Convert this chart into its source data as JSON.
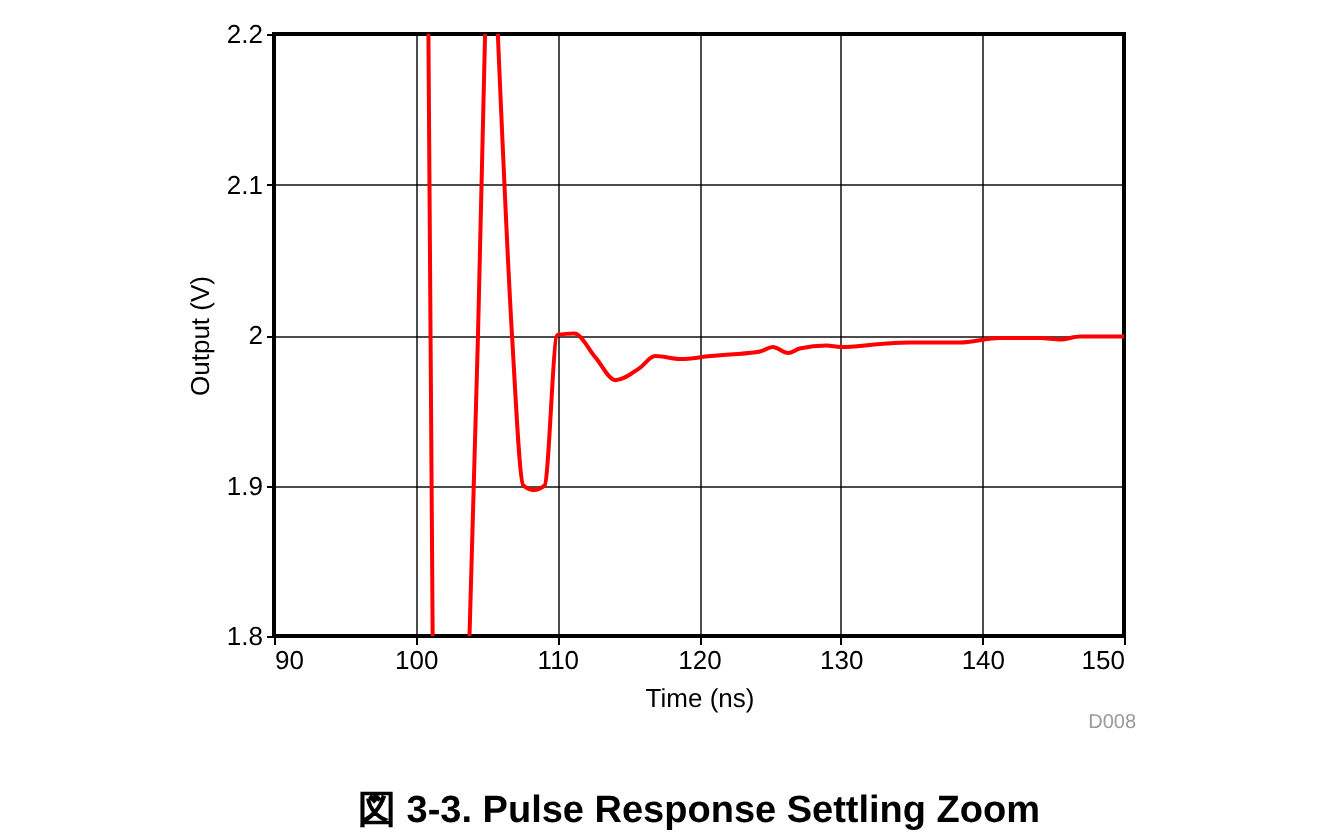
{
  "chart_data": {
    "type": "line",
    "title": "図 3-3. Pulse Response Settling Zoom",
    "xlabel": "Time (ns)",
    "ylabel": "Output (V)",
    "annotations": [
      "D008"
    ],
    "x": [
      100.9,
      101.2,
      102.5,
      103.8,
      104.4,
      104.9,
      105.3,
      105.8,
      106.8,
      107.6,
      108.35,
      109.1,
      110.0,
      111.2,
      112.7,
      114.1,
      115.8,
      116.9,
      118.7,
      120.8,
      122.2,
      124.3,
      125.2,
      126.3,
      127.1,
      129.0,
      130.0,
      132.8,
      134.9,
      138.4,
      141.2,
      144.1,
      145.5,
      146.9,
      150.0
    ],
    "series": [
      {
        "color": "#ff0000",
        "values": [
          2.2,
          1.8,
          null,
          1.8,
          2.0,
          2.2,
          null,
          2.2,
          2.0,
          1.9,
          1.897,
          1.9,
          2.0,
          2.001,
          1.985,
          1.97,
          1.978,
          1.986,
          1.984,
          1.986,
          1.987,
          1.989,
          1.992,
          1.988,
          1.991,
          1.993,
          1.992,
          1.994,
          1.995,
          1.995,
          1.998,
          1.998,
          1.997,
          1.999,
          1.999
        ]
      }
    ],
    "xlim": [
      90,
      150
    ],
    "ylim": [
      1.8,
      2.2
    ],
    "xticks": [
      90,
      100,
      110,
      120,
      130,
      140,
      150
    ],
    "yticks": [
      1.8,
      1.9,
      2,
      2.1,
      2.2
    ],
    "grid": true,
    "marker": "none",
    "line_style": "solid"
  }
}
